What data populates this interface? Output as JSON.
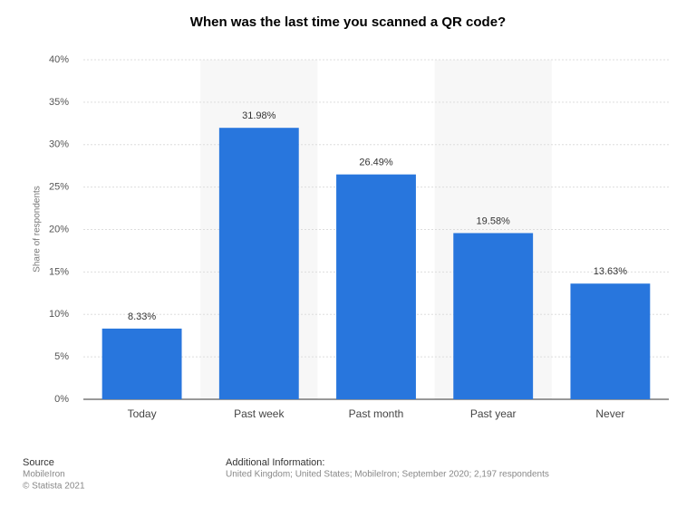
{
  "chart_data": {
    "type": "bar",
    "title": "When was the last time you scanned a QR code?",
    "y_label": "Share of respondents",
    "categories": [
      "Today",
      "Past week",
      "Past month",
      "Past year",
      "Never"
    ],
    "values": [
      8.33,
      31.98,
      26.49,
      19.58,
      13.63
    ],
    "value_labels": [
      "8.33%",
      "31.98%",
      "26.49%",
      "19.58%",
      "13.63%"
    ],
    "color": "#2876dd",
    "ylim": [
      0,
      40
    ],
    "yticks": [
      {
        "value": 0,
        "label": "0%"
      },
      {
        "value": 5,
        "label": "5%"
      },
      {
        "value": 10,
        "label": "10%"
      },
      {
        "value": 15,
        "label": "15%"
      },
      {
        "value": 20,
        "label": "20%"
      },
      {
        "value": 25,
        "label": "25%"
      },
      {
        "value": 30,
        "label": "30%"
      },
      {
        "value": 35,
        "label": "35%"
      },
      {
        "value": 40,
        "label": "40%"
      }
    ],
    "grid": true,
    "source_title": "Source",
    "source_lines": [
      "MobileIron",
      "© Statista 2021"
    ],
    "info_title": "Additional Information:",
    "info_text": "United Kingdom; United States; MobileIron; September 2020; 2,197 respondents"
  }
}
